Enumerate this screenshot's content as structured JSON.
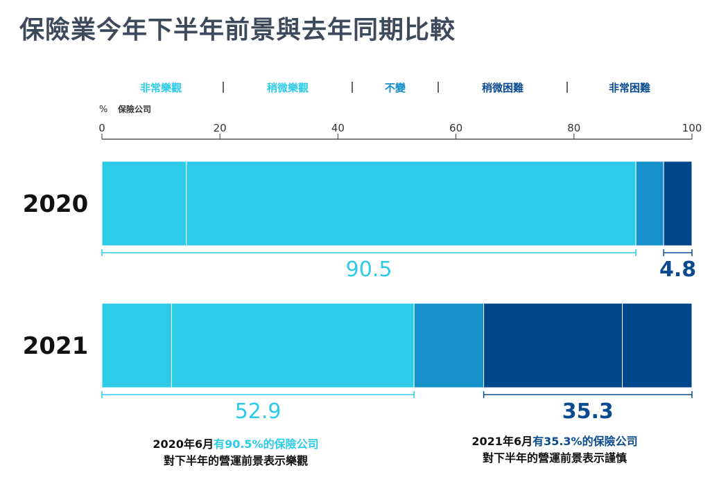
{
  "title": "保險業今年下半年前景與去年同期比較",
  "chart_data": {
    "type": "bar",
    "orientation": "horizontal-stacked",
    "title": "保險業今年下半年前景與去年同期比較",
    "xlabel": "% 保險公司",
    "unit_label": "%",
    "unit_sub": "保險公司",
    "xlim": [
      0,
      100
    ],
    "ticks": [
      "0",
      "20",
      "40",
      "60",
      "80",
      "100"
    ],
    "tick_values": [
      0,
      20,
      40,
      60,
      80,
      100
    ],
    "legend": [
      "非常樂觀",
      "稍微樂觀",
      "不變",
      "稍微困難",
      "非常困難"
    ],
    "colors": [
      "#2ecbe8",
      "#2ecbe8",
      "#1690c8",
      "#00468b",
      "#00468b"
    ],
    "categories": [
      "2020",
      "2021"
    ],
    "series": [
      {
        "name": "非常樂觀",
        "values": [
          14.3,
          11.8
        ]
      },
      {
        "name": "稍微樂觀",
        "values": [
          76.2,
          41.1
        ]
      },
      {
        "name": "不變",
        "values": [
          4.7,
          11.8
        ]
      },
      {
        "name": "稍微困難",
        "values": [
          4.8,
          23.5
        ]
      },
      {
        "name": "非常困難",
        "values": [
          0,
          11.8
        ]
      }
    ],
    "annotations": [
      {
        "bar": "2020",
        "from": 0,
        "to": 90.5,
        "label": "90.5",
        "color": "#2ecbe8"
      },
      {
        "bar": "2020",
        "from": 95.2,
        "to": 100,
        "label": "4.8",
        "color": "#0a4a8f"
      },
      {
        "bar": "2021",
        "from": 0,
        "to": 52.9,
        "label": "52.9",
        "color": "#2ecbe8"
      },
      {
        "bar": "2021",
        "from": 64.7,
        "to": 100,
        "label": "35.3",
        "color": "#0a4a8f"
      }
    ]
  },
  "captions": [
    {
      "pre": "2020年6月",
      "hl": "有90.5%的保險公司",
      "line2": "對下半年的營運前景表示樂觀"
    },
    {
      "pre": "2021年6月",
      "hl": "有35.3%的保險公司",
      "line2": "對下半年的營運前景表示謹慎"
    }
  ]
}
